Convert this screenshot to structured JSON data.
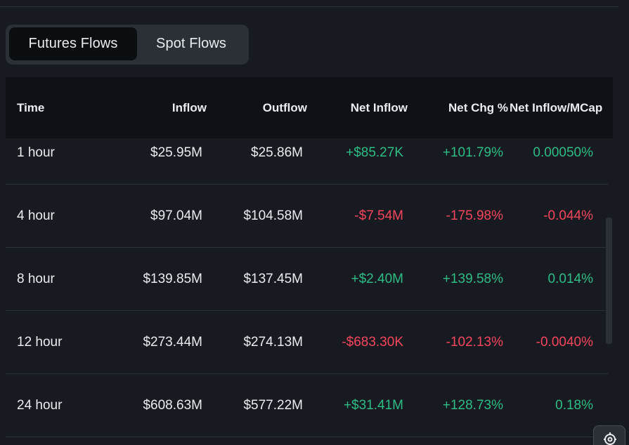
{
  "tabs": [
    {
      "label": "Futures Flows",
      "active": true
    },
    {
      "label": "Spot Flows",
      "active": false
    }
  ],
  "table": {
    "headers": {
      "time": "Time",
      "inflow": "Inflow",
      "outflow": "Outflow",
      "net_inflow": "Net Inflow",
      "net_chg": "Net Chg %",
      "net_inflow_mcap": "Net Inflow/MCap"
    },
    "rows": [
      {
        "time": "1 hour",
        "inflow": "$25.95M",
        "outflow": "$25.86M",
        "net_inflow": "+$85.27K",
        "net_chg": "+101.79%",
        "net_inflow_mcap": "0.00050%"
      },
      {
        "time": "4 hour",
        "inflow": "$97.04M",
        "outflow": "$104.58M",
        "net_inflow": "-$7.54M",
        "net_chg": "-175.98%",
        "net_inflow_mcap": "-0.044%"
      },
      {
        "time": "8 hour",
        "inflow": "$139.85M",
        "outflow": "$137.45M",
        "net_inflow": "+$2.40M",
        "net_chg": "+139.58%",
        "net_inflow_mcap": "0.014%"
      },
      {
        "time": "12 hour",
        "inflow": "$273.44M",
        "outflow": "$274.13M",
        "net_inflow": "-$683.30K",
        "net_chg": "-102.13%",
        "net_inflow_mcap": "-0.0040%"
      },
      {
        "time": "24 hour",
        "inflow": "$608.63M",
        "outflow": "$577.22M",
        "net_inflow": "+$31.41M",
        "net_chg": "+128.73%",
        "net_inflow_mcap": "0.18%"
      }
    ]
  },
  "colors": {
    "background": "#171a20",
    "header_bg": "#0e1116",
    "positive": "#2ebd85",
    "negative": "#f6465d",
    "text": "#eaecef"
  },
  "icons": {
    "corner_button": "settings-gear-icon"
  }
}
